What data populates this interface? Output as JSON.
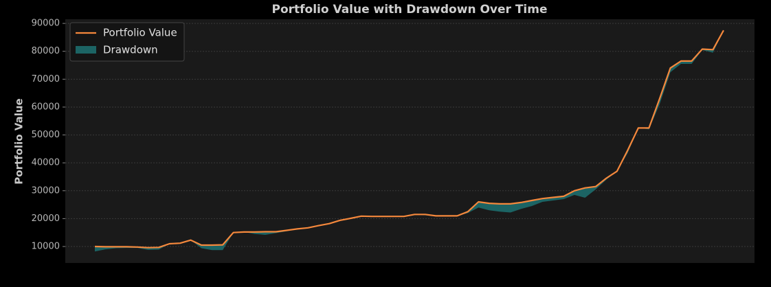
{
  "chart_data": {
    "type": "line",
    "title": "Portfolio Value with Drawdown Over Time",
    "y_label": "Portfolio Value",
    "categories": [
      null,
      null,
      null,
      null,
      null,
      null,
      null,
      null,
      null,
      null,
      null,
      null,
      null,
      null,
      null,
      null,
      null,
      null,
      null,
      null,
      null,
      null,
      null,
      null,
      null,
      null,
      null,
      null,
      null,
      null,
      null,
      null,
      null,
      null,
      null,
      null,
      null,
      null,
      null,
      null,
      null,
      null,
      null,
      null,
      null,
      null,
      null,
      null,
      null,
      null,
      null,
      null,
      null,
      null,
      null,
      null,
      null,
      null,
      null,
      null
    ],
    "series": [
      {
        "name": "Portfolio Value",
        "color": "#f5883c",
        "values": [
          10000,
          9900,
          9900,
          9900,
          9800,
          9600,
          9700,
          11000,
          11200,
          12300,
          10500,
          10500,
          10600,
          15000,
          15200,
          15200,
          15300,
          15300,
          15800,
          16300,
          16700,
          17500,
          18200,
          19400,
          20100,
          20900,
          20800,
          20800,
          20800,
          20800,
          21500,
          21500,
          21000,
          21000,
          21000,
          22500,
          26000,
          25500,
          25300,
          25300,
          25800,
          26500,
          27200,
          27600,
          28000,
          30000,
          31000,
          31500,
          34500,
          37000,
          44500,
          52500,
          52500,
          63000,
          74000,
          76500,
          76500,
          80800,
          80600,
          87500
        ]
      },
      {
        "name": "Drawdown",
        "color": "#1c6464",
        "values": [
          8200,
          9000,
          9400,
          9500,
          9500,
          8800,
          8900,
          11000,
          11200,
          12300,
          9400,
          8700,
          8700,
          15000,
          15200,
          14500,
          14200,
          14800,
          15500,
          16300,
          16700,
          17500,
          18200,
          19400,
          20100,
          20700,
          20800,
          20800,
          20800,
          20800,
          21500,
          21200,
          21000,
          21000,
          21000,
          22000,
          24000,
          23000,
          22500,
          22200,
          23500,
          24500,
          26000,
          26500,
          27000,
          28500,
          27500,
          30500,
          34000,
          37000,
          43500,
          52500,
          52000,
          61000,
          72500,
          75500,
          75500,
          80500,
          79500,
          87500
        ]
      }
    ],
    "ylim": [
      4100,
      91500
    ],
    "yticks": [
      10000,
      20000,
      30000,
      40000,
      50000,
      60000,
      70000,
      80000,
      90000
    ],
    "grid": true,
    "legend": "upper left"
  }
}
